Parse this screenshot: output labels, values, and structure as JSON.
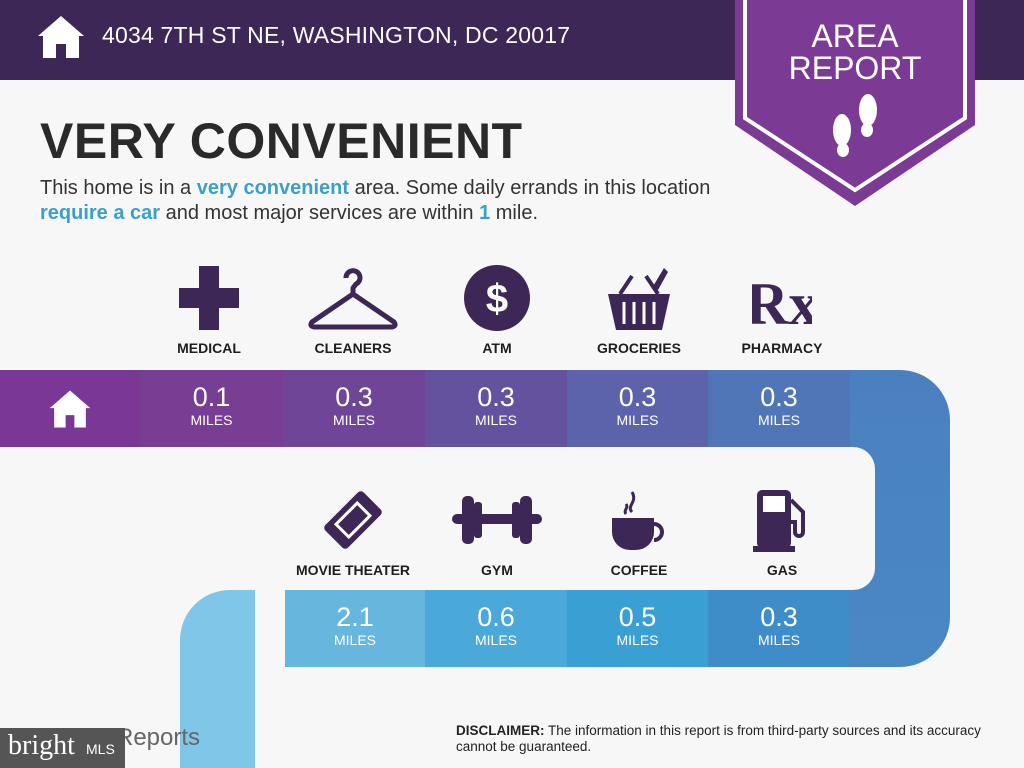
{
  "header": {
    "address": "4034 7TH ST NE, WASHINGTON, DC 20017",
    "icon": "home-icon"
  },
  "badge": {
    "line1": "AREA",
    "line2": "REPORT",
    "icon": "footprints-icon"
  },
  "title": "VERY CONVENIENT",
  "description": {
    "p1": "This home is in a ",
    "h1": "very convenient",
    "p2": " area. Some daily errands in this location ",
    "h2": "require a car",
    "p3": " and most major services are within ",
    "h3": "1",
    "p4": " mile."
  },
  "amenities_top": [
    {
      "label": "MEDICAL",
      "icon": "medical-cross-icon",
      "distance": "0.1",
      "unit": "MILES"
    },
    {
      "label": "CLEANERS",
      "icon": "hanger-icon",
      "distance": "0.3",
      "unit": "MILES"
    },
    {
      "label": "ATM",
      "icon": "dollar-icon",
      "distance": "0.3",
      "unit": "MILES"
    },
    {
      "label": "GROCERIES",
      "icon": "basket-icon",
      "distance": "0.3",
      "unit": "MILES"
    },
    {
      "label": "PHARMACY",
      "icon": "rx-icon",
      "distance": "0.3",
      "unit": "MILES"
    }
  ],
  "amenities_bottom": [
    {
      "label": "MOVIE THEATER",
      "icon": "ticket-icon",
      "distance": "2.1",
      "unit": "MILES"
    },
    {
      "label": "GYM",
      "icon": "dumbbell-icon",
      "distance": "0.6",
      "unit": "MILES"
    },
    {
      "label": "COFFEE",
      "icon": "coffee-cup-icon",
      "distance": "0.5",
      "unit": "MILES"
    },
    {
      "label": "GAS",
      "icon": "gas-pump-icon",
      "distance": "0.3",
      "unit": "MILES"
    }
  ],
  "rx": "Rx",
  "dollar": "$",
  "disclaimer": {
    "label": "DISCLAIMER:",
    "text": " The information in this report is from third-party sources and its accuracy cannot be guaranteed."
  },
  "logo": {
    "bright": "bright",
    "mls": "MLS",
    "reports": "Reports"
  },
  "colors": {
    "header": "#3d2757",
    "badge": "#7b3a93",
    "icon": "#3d2757",
    "highlight": "#3aa0c8"
  }
}
